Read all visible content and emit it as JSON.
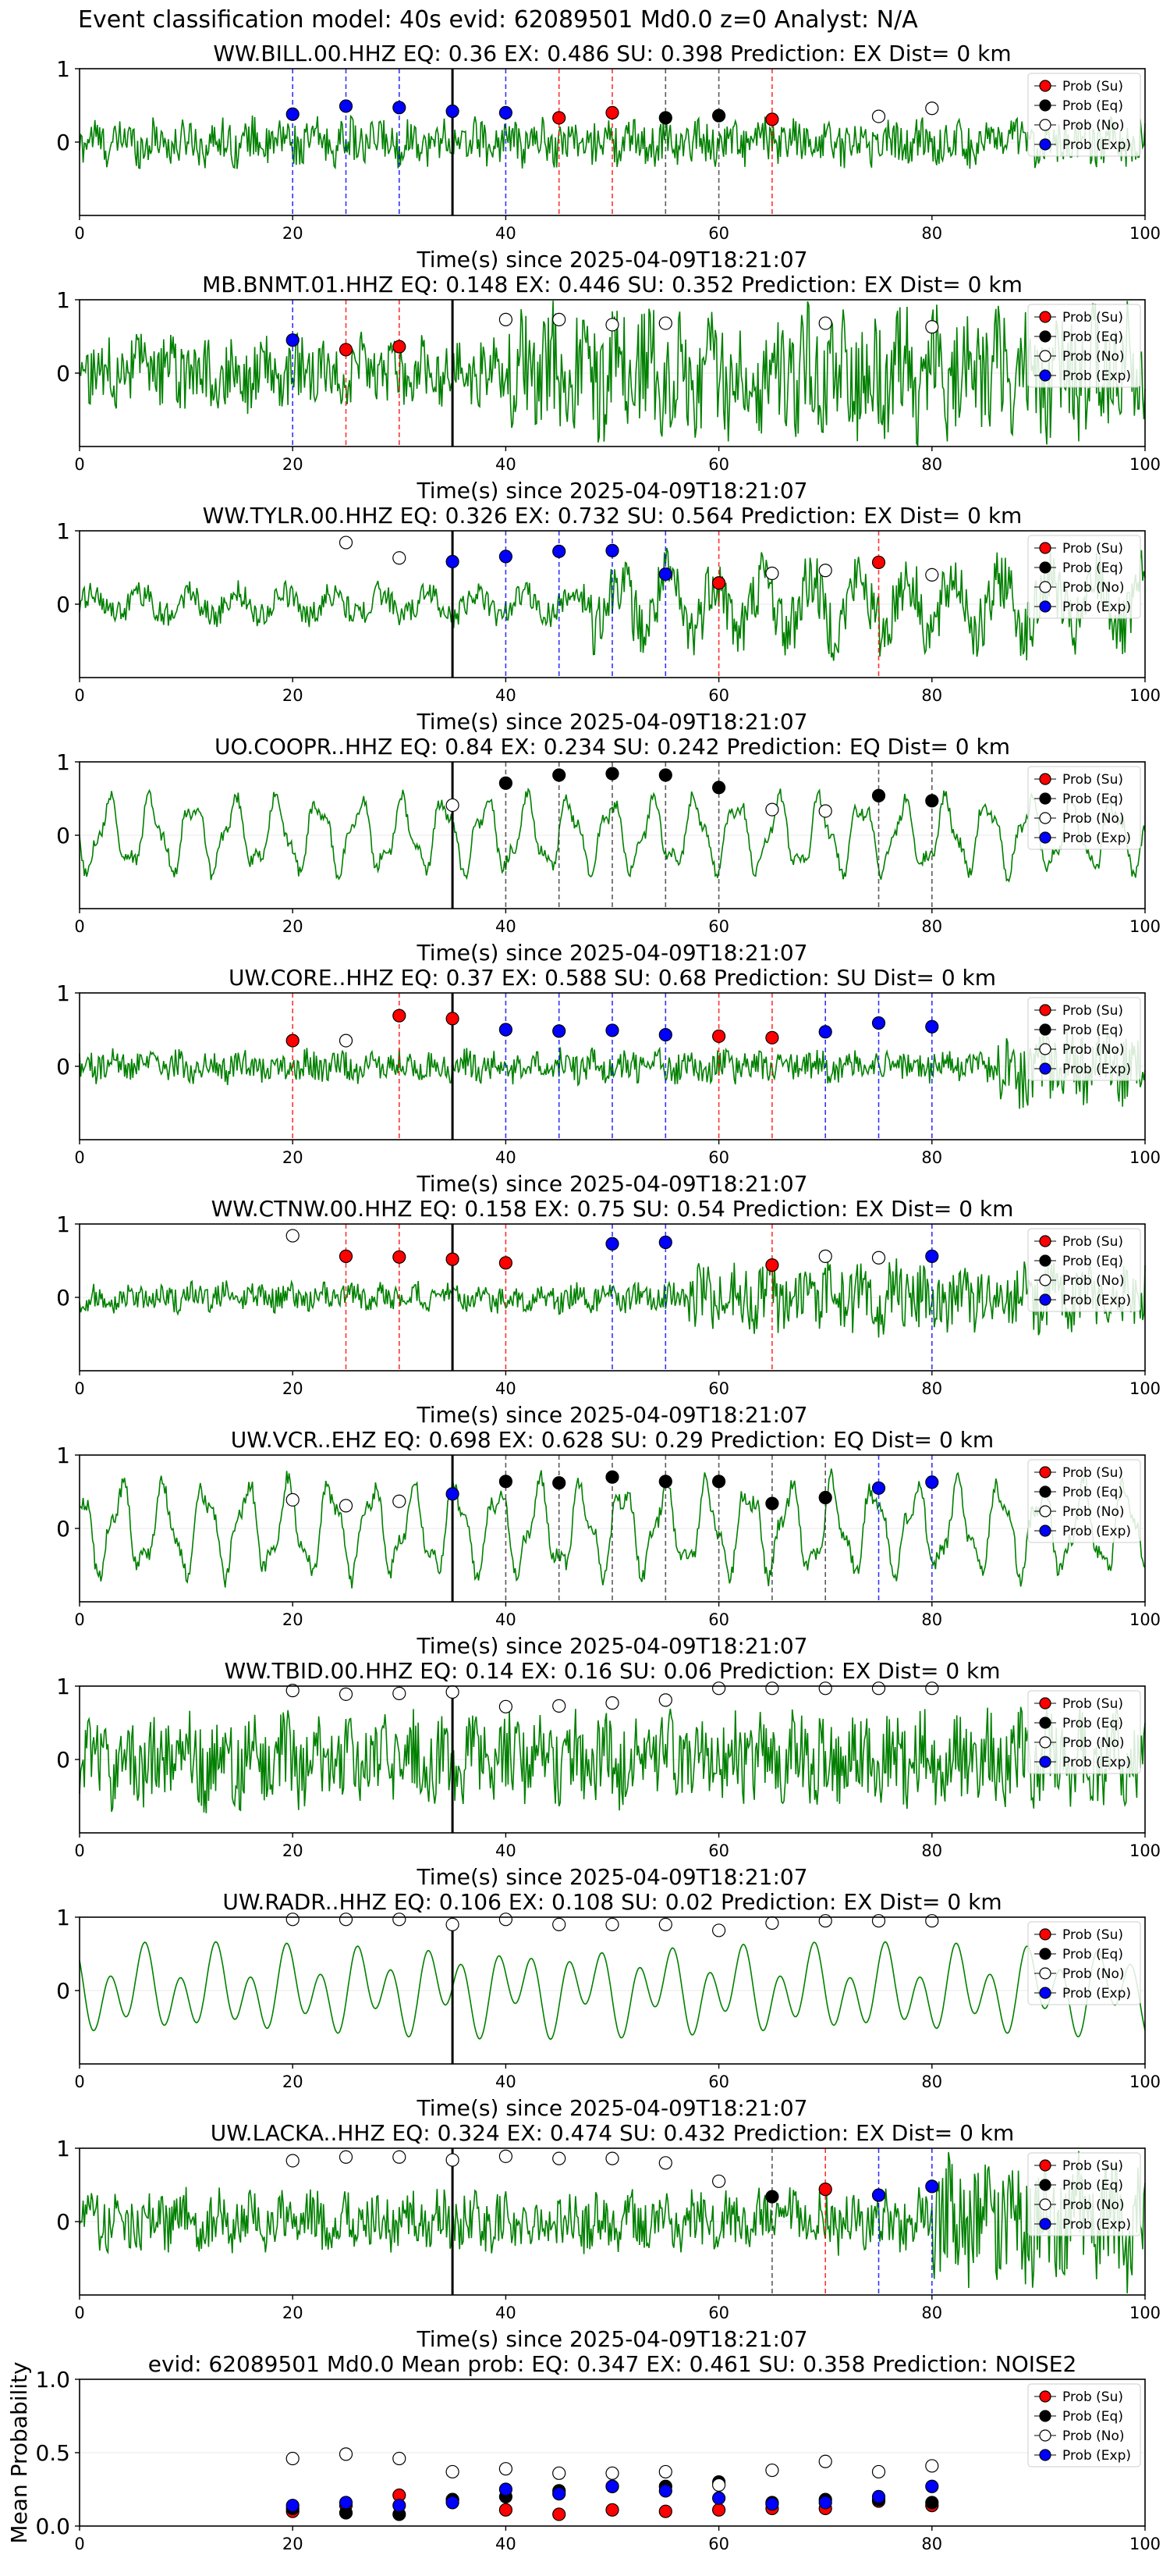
{
  "suptitle": "Event classification model: 40s evid: 62089501 Md0.0 z=0 Analyst: N/A",
  "legend": {
    "entries": [
      {
        "label": "Prob (Su)",
        "fill": "#ff0000"
      },
      {
        "label": "Prob (Eq)",
        "fill": "#000000"
      },
      {
        "label": "Prob (No)",
        "fill": "#ffffff"
      },
      {
        "label": "Prob (Exp)",
        "fill": "#0000ff"
      }
    ]
  },
  "colors": {
    "su": "#ff0000",
    "eq": "#000000",
    "no": "#ffffff",
    "exp": "#0000ff",
    "waveform": "#008000"
  },
  "event_line_x": 35,
  "chart_data": [
    {
      "type": "line",
      "title": "WW.BILL.00.HHZ   EQ: 0.36  EX: 0.486  SU: 0.398   Prediction: EX    Dist= 0 km",
      "xlabel": "Time(s) since 2025-04-09T18:21:07",
      "xlim": [
        0,
        100
      ],
      "ylim": [
        -1,
        1
      ],
      "xticks": [
        0,
        20,
        40,
        60,
        80,
        100
      ],
      "yticks": [
        1,
        0
      ],
      "amp": 0.35,
      "freq": "high",
      "noise_after": 0,
      "points": [
        {
          "x": 20,
          "y": 0.38,
          "cls": "exp"
        },
        {
          "x": 25,
          "y": 0.49,
          "cls": "exp"
        },
        {
          "x": 30,
          "y": 0.47,
          "cls": "exp"
        },
        {
          "x": 35,
          "y": 0.42,
          "cls": "exp"
        },
        {
          "x": 40,
          "y": 0.4,
          "cls": "exp"
        },
        {
          "x": 45,
          "y": 0.33,
          "cls": "su"
        },
        {
          "x": 50,
          "y": 0.4,
          "cls": "su"
        },
        {
          "x": 55,
          "y": 0.33,
          "cls": "eq"
        },
        {
          "x": 60,
          "y": 0.36,
          "cls": "eq"
        },
        {
          "x": 65,
          "y": 0.31,
          "cls": "su"
        },
        {
          "x": 75,
          "y": 0.35,
          "cls": "no"
        },
        {
          "x": 80,
          "y": 0.46,
          "cls": "no"
        }
      ]
    },
    {
      "type": "line",
      "title": "MB.BNMT.01.HHZ   EQ: 0.148  EX: 0.446  SU: 0.352   Prediction: EX    Dist= 0 km",
      "xlabel": "Time(s) since 2025-04-09T18:21:07",
      "xlim": [
        0,
        100
      ],
      "ylim": [
        -1,
        1
      ],
      "xticks": [
        0,
        20,
        40,
        60,
        80,
        100
      ],
      "yticks": [
        1,
        0
      ],
      "amp": 0.55,
      "freq": "high",
      "noise_after": 40,
      "points": [
        {
          "x": 20,
          "y": 0.45,
          "cls": "exp"
        },
        {
          "x": 25,
          "y": 0.32,
          "cls": "su"
        },
        {
          "x": 30,
          "y": 0.36,
          "cls": "su"
        },
        {
          "x": 40,
          "y": 0.73,
          "cls": "no"
        },
        {
          "x": 45,
          "y": 0.73,
          "cls": "no"
        },
        {
          "x": 50,
          "y": 0.66,
          "cls": "no"
        },
        {
          "x": 55,
          "y": 0.68,
          "cls": "no"
        },
        {
          "x": 70,
          "y": 0.68,
          "cls": "no"
        },
        {
          "x": 80,
          "y": 0.63,
          "cls": "no"
        }
      ]
    },
    {
      "type": "line",
      "title": "WW.TYLR.00.HHZ   EQ: 0.326  EX: 0.732  SU: 0.564   Prediction: EX    Dist= 0 km",
      "xlabel": "Time(s) since 2025-04-09T18:21:07",
      "xlim": [
        0,
        100
      ],
      "ylim": [
        -1,
        1
      ],
      "xticks": [
        0,
        20,
        40,
        60,
        80,
        100
      ],
      "yticks": [
        1,
        0
      ],
      "amp": 0.3,
      "freq": "mixed",
      "noise_after": 47,
      "points": [
        {
          "x": 25,
          "y": 0.84,
          "cls": "no"
        },
        {
          "x": 30,
          "y": 0.63,
          "cls": "no"
        },
        {
          "x": 35,
          "y": 0.58,
          "cls": "exp"
        },
        {
          "x": 40,
          "y": 0.65,
          "cls": "exp"
        },
        {
          "x": 45,
          "y": 0.72,
          "cls": "exp"
        },
        {
          "x": 50,
          "y": 0.73,
          "cls": "exp"
        },
        {
          "x": 55,
          "y": 0.41,
          "cls": "exp"
        },
        {
          "x": 60,
          "y": 0.29,
          "cls": "su"
        },
        {
          "x": 65,
          "y": 0.42,
          "cls": "no"
        },
        {
          "x": 70,
          "y": 0.46,
          "cls": "no"
        },
        {
          "x": 75,
          "y": 0.57,
          "cls": "su"
        },
        {
          "x": 80,
          "y": 0.4,
          "cls": "no"
        }
      ]
    },
    {
      "type": "line",
      "title": "UO.COOPR..HHZ   EQ: 0.84  EX: 0.234  SU: 0.242   Prediction: EQ    Dist= 0 km",
      "xlabel": "Time(s) since 2025-04-09T18:21:07",
      "xlim": [
        0,
        100
      ],
      "ylim": [
        -1,
        1
      ],
      "xticks": [
        0,
        20,
        40,
        60,
        80,
        100
      ],
      "yticks": [
        1,
        0
      ],
      "amp": 0.6,
      "freq": "low",
      "noise_after": 0,
      "points": [
        {
          "x": 35,
          "y": 0.41,
          "cls": "no"
        },
        {
          "x": 40,
          "y": 0.71,
          "cls": "eq"
        },
        {
          "x": 45,
          "y": 0.82,
          "cls": "eq"
        },
        {
          "x": 50,
          "y": 0.84,
          "cls": "eq"
        },
        {
          "x": 55,
          "y": 0.82,
          "cls": "eq"
        },
        {
          "x": 60,
          "y": 0.65,
          "cls": "eq"
        },
        {
          "x": 65,
          "y": 0.35,
          "cls": "no"
        },
        {
          "x": 70,
          "y": 0.33,
          "cls": "no"
        },
        {
          "x": 75,
          "y": 0.54,
          "cls": "eq"
        },
        {
          "x": 80,
          "y": 0.47,
          "cls": "eq"
        }
      ]
    },
    {
      "type": "line",
      "title": "UW.CORE..HHZ   EQ: 0.37  EX: 0.588  SU: 0.68   Prediction: SU    Dist= 0 km",
      "xlabel": "Time(s) since 2025-04-09T18:21:07",
      "xlim": [
        0,
        100
      ],
      "ylim": [
        -1,
        1
      ],
      "xticks": [
        0,
        20,
        40,
        60,
        80,
        100
      ],
      "yticks": [
        1,
        0
      ],
      "amp": 0.25,
      "freq": "high",
      "noise_after": 86,
      "points": [
        {
          "x": 20,
          "y": 0.35,
          "cls": "su"
        },
        {
          "x": 25,
          "y": 0.35,
          "cls": "no"
        },
        {
          "x": 30,
          "y": 0.69,
          "cls": "su"
        },
        {
          "x": 35,
          "y": 0.65,
          "cls": "su"
        },
        {
          "x": 40,
          "y": 0.5,
          "cls": "exp"
        },
        {
          "x": 45,
          "y": 0.48,
          "cls": "exp"
        },
        {
          "x": 50,
          "y": 0.49,
          "cls": "exp"
        },
        {
          "x": 55,
          "y": 0.43,
          "cls": "exp"
        },
        {
          "x": 60,
          "y": 0.41,
          "cls": "su"
        },
        {
          "x": 65,
          "y": 0.39,
          "cls": "su"
        },
        {
          "x": 70,
          "y": 0.47,
          "cls": "exp"
        },
        {
          "x": 75,
          "y": 0.59,
          "cls": "exp"
        },
        {
          "x": 80,
          "y": 0.54,
          "cls": "exp"
        }
      ]
    },
    {
      "type": "line",
      "title": "WW.CTNW.00.HHZ   EQ: 0.158  EX: 0.75  SU: 0.54   Prediction: EX    Dist= 0 km",
      "xlabel": "Time(s) since 2025-04-09T18:21:07",
      "xlim": [
        0,
        100
      ],
      "ylim": [
        -1,
        1
      ],
      "xticks": [
        0,
        20,
        40,
        60,
        80,
        100
      ],
      "yticks": [
        1,
        0
      ],
      "amp": 0.22,
      "freq": "high",
      "noise_after": 57,
      "points": [
        {
          "x": 20,
          "y": 0.84,
          "cls": "no"
        },
        {
          "x": 25,
          "y": 0.56,
          "cls": "su"
        },
        {
          "x": 30,
          "y": 0.55,
          "cls": "su"
        },
        {
          "x": 35,
          "y": 0.52,
          "cls": "su"
        },
        {
          "x": 40,
          "y": 0.47,
          "cls": "su"
        },
        {
          "x": 50,
          "y": 0.73,
          "cls": "exp"
        },
        {
          "x": 55,
          "y": 0.75,
          "cls": "exp"
        },
        {
          "x": 65,
          "y": 0.44,
          "cls": "su"
        },
        {
          "x": 70,
          "y": 0.56,
          "cls": "no"
        },
        {
          "x": 75,
          "y": 0.54,
          "cls": "no"
        },
        {
          "x": 80,
          "y": 0.56,
          "cls": "exp"
        }
      ]
    },
    {
      "type": "line",
      "title": "UW.VCR..EHZ   EQ: 0.698  EX: 0.628  SU: 0.29   Prediction: EQ    Dist= 0 km",
      "xlabel": "Time(s) since 2025-04-09T18:21:07",
      "xlim": [
        0,
        100
      ],
      "ylim": [
        -1,
        1
      ],
      "xticks": [
        0,
        20,
        40,
        60,
        80,
        100
      ],
      "yticks": [
        1,
        0
      ],
      "amp": 0.75,
      "freq": "low",
      "noise_after": 0,
      "points": [
        {
          "x": 20,
          "y": 0.39,
          "cls": "no"
        },
        {
          "x": 25,
          "y": 0.31,
          "cls": "no"
        },
        {
          "x": 30,
          "y": 0.37,
          "cls": "no"
        },
        {
          "x": 35,
          "y": 0.47,
          "cls": "exp"
        },
        {
          "x": 40,
          "y": 0.64,
          "cls": "eq"
        },
        {
          "x": 45,
          "y": 0.62,
          "cls": "eq"
        },
        {
          "x": 50,
          "y": 0.7,
          "cls": "eq"
        },
        {
          "x": 55,
          "y": 0.64,
          "cls": "eq"
        },
        {
          "x": 60,
          "y": 0.64,
          "cls": "eq"
        },
        {
          "x": 65,
          "y": 0.34,
          "cls": "eq"
        },
        {
          "x": 70,
          "y": 0.42,
          "cls": "eq"
        },
        {
          "x": 75,
          "y": 0.55,
          "cls": "exp"
        },
        {
          "x": 80,
          "y": 0.63,
          "cls": "exp"
        }
      ]
    },
    {
      "type": "line",
      "title": "WW.TBID.00.HHZ   EQ: 0.14  EX: 0.16  SU: 0.06   Prediction: EX    Dist= 0 km",
      "xlabel": "Time(s) since 2025-04-09T18:21:07",
      "xlim": [
        0,
        100
      ],
      "ylim": [
        -1,
        1
      ],
      "xticks": [
        0,
        20,
        40,
        60,
        80,
        100
      ],
      "yticks": [
        1,
        0
      ],
      "amp": 0.7,
      "freq": "high",
      "noise_after": 0,
      "points": [
        {
          "x": 20,
          "y": 0.94,
          "cls": "no"
        },
        {
          "x": 25,
          "y": 0.89,
          "cls": "no"
        },
        {
          "x": 30,
          "y": 0.9,
          "cls": "no"
        },
        {
          "x": 35,
          "y": 0.92,
          "cls": "no"
        },
        {
          "x": 40,
          "y": 0.72,
          "cls": "no"
        },
        {
          "x": 45,
          "y": 0.73,
          "cls": "no"
        },
        {
          "x": 50,
          "y": 0.77,
          "cls": "no"
        },
        {
          "x": 55,
          "y": 0.81,
          "cls": "no"
        },
        {
          "x": 60,
          "y": 0.97,
          "cls": "no"
        },
        {
          "x": 65,
          "y": 0.97,
          "cls": "no"
        },
        {
          "x": 70,
          "y": 0.97,
          "cls": "no"
        },
        {
          "x": 75,
          "y": 0.97,
          "cls": "no"
        },
        {
          "x": 80,
          "y": 0.97,
          "cls": "no"
        }
      ]
    },
    {
      "type": "line",
      "title": "UW.RADR..HHZ   EQ: 0.106  EX: 0.108  SU: 0.02   Prediction: EX    Dist= 0 km",
      "xlabel": "Time(s) since 2025-04-09T18:21:07",
      "xlim": [
        0,
        100
      ],
      "ylim": [
        -1,
        1
      ],
      "xticks": [
        0,
        20,
        40,
        60,
        80,
        100
      ],
      "yticks": [
        1,
        0
      ],
      "amp": 0.7,
      "freq": "smooth",
      "noise_after": 0,
      "points": [
        {
          "x": 20,
          "y": 0.97,
          "cls": "no"
        },
        {
          "x": 25,
          "y": 0.97,
          "cls": "no"
        },
        {
          "x": 30,
          "y": 0.97,
          "cls": "no"
        },
        {
          "x": 35,
          "y": 0.9,
          "cls": "no"
        },
        {
          "x": 40,
          "y": 0.97,
          "cls": "no"
        },
        {
          "x": 45,
          "y": 0.9,
          "cls": "no"
        },
        {
          "x": 50,
          "y": 0.9,
          "cls": "no"
        },
        {
          "x": 55,
          "y": 0.9,
          "cls": "no"
        },
        {
          "x": 60,
          "y": 0.82,
          "cls": "no"
        },
        {
          "x": 65,
          "y": 0.92,
          "cls": "no"
        },
        {
          "x": 70,
          "y": 0.95,
          "cls": "no"
        },
        {
          "x": 75,
          "y": 0.95,
          "cls": "no"
        },
        {
          "x": 80,
          "y": 0.95,
          "cls": "no"
        }
      ]
    },
    {
      "type": "line",
      "title": "UW.LACKA..HHZ   EQ: 0.324  EX: 0.474  SU: 0.432   Prediction: EX    Dist= 0 km",
      "xlabel": "Time(s) since 2025-04-09T18:21:07",
      "xlim": [
        0,
        100
      ],
      "ylim": [
        -1,
        1
      ],
      "xticks": [
        0,
        20,
        40,
        60,
        80,
        100
      ],
      "yticks": [
        1,
        0
      ],
      "amp": 0.45,
      "freq": "high",
      "noise_after": 80,
      "points": [
        {
          "x": 20,
          "y": 0.83,
          "cls": "no"
        },
        {
          "x": 25,
          "y": 0.88,
          "cls": "no"
        },
        {
          "x": 30,
          "y": 0.88,
          "cls": "no"
        },
        {
          "x": 35,
          "y": 0.84,
          "cls": "no"
        },
        {
          "x": 40,
          "y": 0.89,
          "cls": "no"
        },
        {
          "x": 45,
          "y": 0.86,
          "cls": "no"
        },
        {
          "x": 50,
          "y": 0.86,
          "cls": "no"
        },
        {
          "x": 55,
          "y": 0.8,
          "cls": "no"
        },
        {
          "x": 60,
          "y": 0.55,
          "cls": "no"
        },
        {
          "x": 65,
          "y": 0.34,
          "cls": "eq"
        },
        {
          "x": 70,
          "y": 0.44,
          "cls": "su"
        },
        {
          "x": 75,
          "y": 0.36,
          "cls": "exp"
        },
        {
          "x": 80,
          "y": 0.48,
          "cls": "exp"
        }
      ]
    },
    {
      "type": "scatter",
      "title": "evid: 62089501  Md0.0   Mean prob:   EQ: 0.347  EX: 0.461  SU: 0.358   Prediction: NOISE2",
      "ylabel": "Mean Probability",
      "xlim": [
        0,
        100
      ],
      "ylim": [
        0,
        1
      ],
      "xticks": [
        0,
        20,
        40,
        60,
        80,
        100
      ],
      "yticks": [
        1.0,
        0.5,
        0.0
      ],
      "x": [
        20,
        25,
        30,
        35,
        40,
        45,
        50,
        55,
        60,
        65,
        70,
        75,
        80
      ],
      "series": [
        {
          "cls": "su",
          "values": [
            0.1,
            0.14,
            0.21,
            0.18,
            0.11,
            0.08,
            0.11,
            0.1,
            0.11,
            0.12,
            0.12,
            0.17,
            0.14
          ]
        },
        {
          "cls": "eq",
          "values": [
            0.12,
            0.09,
            0.08,
            0.18,
            0.2,
            0.24,
            0.27,
            0.27,
            0.3,
            0.16,
            0.18,
            0.18,
            0.16
          ]
        },
        {
          "cls": "no",
          "values": [
            0.46,
            0.49,
            0.46,
            0.37,
            0.39,
            0.36,
            0.36,
            0.37,
            0.28,
            0.38,
            0.44,
            0.37,
            0.41
          ]
        },
        {
          "cls": "exp",
          "values": [
            0.14,
            0.16,
            0.14,
            0.16,
            0.25,
            0.22,
            0.27,
            0.24,
            0.19,
            0.15,
            0.16,
            0.2,
            0.27
          ]
        }
      ]
    }
  ]
}
